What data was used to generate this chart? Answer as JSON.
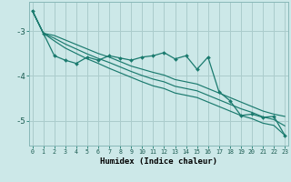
{
  "xlabel": "Humidex (Indice chaleur)",
  "bg_color": "#cce8e8",
  "grid_color": "#aacccc",
  "line_color": "#1a7a6e",
  "x_values": [
    0,
    1,
    2,
    3,
    4,
    5,
    6,
    7,
    8,
    9,
    10,
    11,
    12,
    13,
    14,
    15,
    16,
    17,
    18,
    19,
    20,
    21,
    22,
    23
  ],
  "y_main": [
    -2.55,
    -3.05,
    -3.55,
    -3.65,
    -3.72,
    -3.58,
    -3.65,
    -3.55,
    -3.6,
    -3.65,
    -3.58,
    -3.55,
    -3.48,
    -3.62,
    -3.55,
    -3.85,
    -3.58,
    -4.35,
    -4.55,
    -4.88,
    -4.85,
    -4.92,
    -4.9,
    -5.32
  ],
  "y_upper": [
    -2.55,
    -3.05,
    -3.1,
    -3.2,
    -3.3,
    -3.4,
    -3.5,
    -3.58,
    -3.68,
    -3.78,
    -3.85,
    -3.92,
    -3.98,
    -4.08,
    -4.13,
    -4.18,
    -4.28,
    -4.38,
    -4.48,
    -4.58,
    -4.68,
    -4.78,
    -4.85,
    -4.9
  ],
  "y_lower": [
    -2.55,
    -3.05,
    -3.22,
    -3.38,
    -3.5,
    -3.62,
    -3.72,
    -3.83,
    -3.93,
    -4.03,
    -4.13,
    -4.22,
    -4.28,
    -4.38,
    -4.43,
    -4.48,
    -4.58,
    -4.68,
    -4.78,
    -4.88,
    -4.95,
    -5.05,
    -5.1,
    -5.32
  ],
  "y_mid": [
    -2.55,
    -3.05,
    -3.16,
    -3.29,
    -3.4,
    -3.51,
    -3.61,
    -3.7,
    -3.8,
    -3.9,
    -3.99,
    -4.07,
    -4.13,
    -4.23,
    -4.28,
    -4.33,
    -4.43,
    -4.53,
    -4.63,
    -4.73,
    -4.81,
    -4.91,
    -4.97,
    -5.11
  ],
  "yticks": [
    -5,
    -4,
    -3
  ],
  "ylim": [
    -5.55,
    -2.35
  ],
  "xlim": [
    -0.3,
    23.3
  ]
}
